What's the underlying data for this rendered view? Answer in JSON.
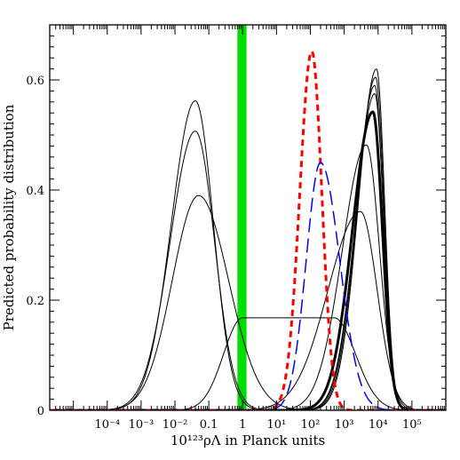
{
  "chart_data": {
    "type": "line",
    "xlabel": "10¹²³ρΛ in Planck units",
    "ylabel": "Predicted probability distribution",
    "x_scale": "log",
    "xlim": [
      2e-06,
      1000000.0
    ],
    "ylim": [
      0,
      0.7
    ],
    "x_tick_labels": [
      {
        "x": 0.0001,
        "label": "10⁻⁴"
      },
      {
        "x": 0.001,
        "label": "10⁻³"
      },
      {
        "x": 0.01,
        "label": "10⁻²"
      },
      {
        "x": 0.1,
        "label": "0.1"
      },
      {
        "x": 1,
        "label": "1"
      },
      {
        "x": 10,
        "label": "10¹"
      },
      {
        "x": 100,
        "label": "10²"
      },
      {
        "x": 1000,
        "label": "10³"
      },
      {
        "x": 10000,
        "label": "10⁴"
      },
      {
        "x": 100000,
        "label": "10⁵"
      }
    ],
    "y_tick_labels": [
      {
        "y": 0,
        "label": "0"
      },
      {
        "y": 0.2,
        "label": "0.2"
      },
      {
        "y": 0.4,
        "label": "0.4"
      },
      {
        "y": 0.6,
        "label": "0.6"
      }
    ],
    "observed_band": {
      "x_min": 0.7,
      "x_max": 1.3,
      "color": "#00dd00"
    },
    "series": [
      {
        "style": "solid",
        "color": "#000000",
        "width": 1,
        "peak_x": 0.04,
        "peak_y": 0.562,
        "left_width": 1.0,
        "right_width": 0.75,
        "shape": "gaussian"
      },
      {
        "style": "solid",
        "color": "#000000",
        "width": 1,
        "peak_x": 0.04,
        "peak_y": 0.507,
        "left_width": 1.05,
        "right_width": 0.8,
        "shape": "gaussian"
      },
      {
        "style": "solid",
        "color": "#000000",
        "width": 1,
        "peak_x": 0.05,
        "peak_y": 0.39,
        "left_width": 1.1,
        "right_width": 1.25,
        "shape": "gaussian"
      },
      {
        "style": "solid",
        "color": "#000000",
        "width": 1,
        "x_start": 1.0,
        "x_end": 500,
        "plateau_y": 0.168,
        "left_width": 0.8,
        "right_width": 0.9,
        "shape": "plateau"
      },
      {
        "style": "solid",
        "color": "#000000",
        "width": 1,
        "peak_x": 3000,
        "peak_y": 0.361,
        "left_width": 1.35,
        "right_width": 0.7,
        "shape": "gaussian"
      },
      {
        "style": "solid",
        "color": "#000000",
        "width": 1,
        "peak_x": 4500,
        "peak_y": 0.482,
        "left_width": 1.0,
        "right_width": 0.55,
        "shape": "gaussian"
      },
      {
        "style": "solid",
        "color": "#000000",
        "width": 1,
        "peak_x": 8000,
        "peak_y": 0.575,
        "left_width": 0.8,
        "right_width": 0.37,
        "shape": "gaussian"
      },
      {
        "style": "solid",
        "color": "#000000",
        "width": 1,
        "peak_x": 8000,
        "peak_y": 0.59,
        "left_width": 0.78,
        "right_width": 0.36,
        "shape": "gaussian"
      },
      {
        "style": "solid",
        "color": "#000000",
        "width": 1,
        "peak_x": 8500,
        "peak_y": 0.605,
        "left_width": 0.77,
        "right_width": 0.35,
        "shape": "gaussian"
      },
      {
        "style": "solid",
        "color": "#000000",
        "width": 1,
        "peak_x": 9000,
        "peak_y": 0.62,
        "left_width": 0.76,
        "right_width": 0.34,
        "shape": "gaussian"
      },
      {
        "style": "solid",
        "color": "#000000",
        "width": 3,
        "peak_x": 7000,
        "peak_y": 0.542,
        "left_width": 0.85,
        "right_width": 0.4,
        "shape": "gaussian"
      },
      {
        "style": "dashed",
        "color": "#ff0000",
        "width": 3,
        "peak_x": 110,
        "peak_y": 0.652,
        "left_width": 0.5,
        "right_width": 0.42,
        "shape": "gaussian"
      },
      {
        "style": "longdash",
        "color": "#0000ff",
        "width": 1.5,
        "peak_x": 200,
        "peak_y": 0.45,
        "left_width": 0.6,
        "right_width": 0.8,
        "shape": "gaussian"
      }
    ]
  }
}
